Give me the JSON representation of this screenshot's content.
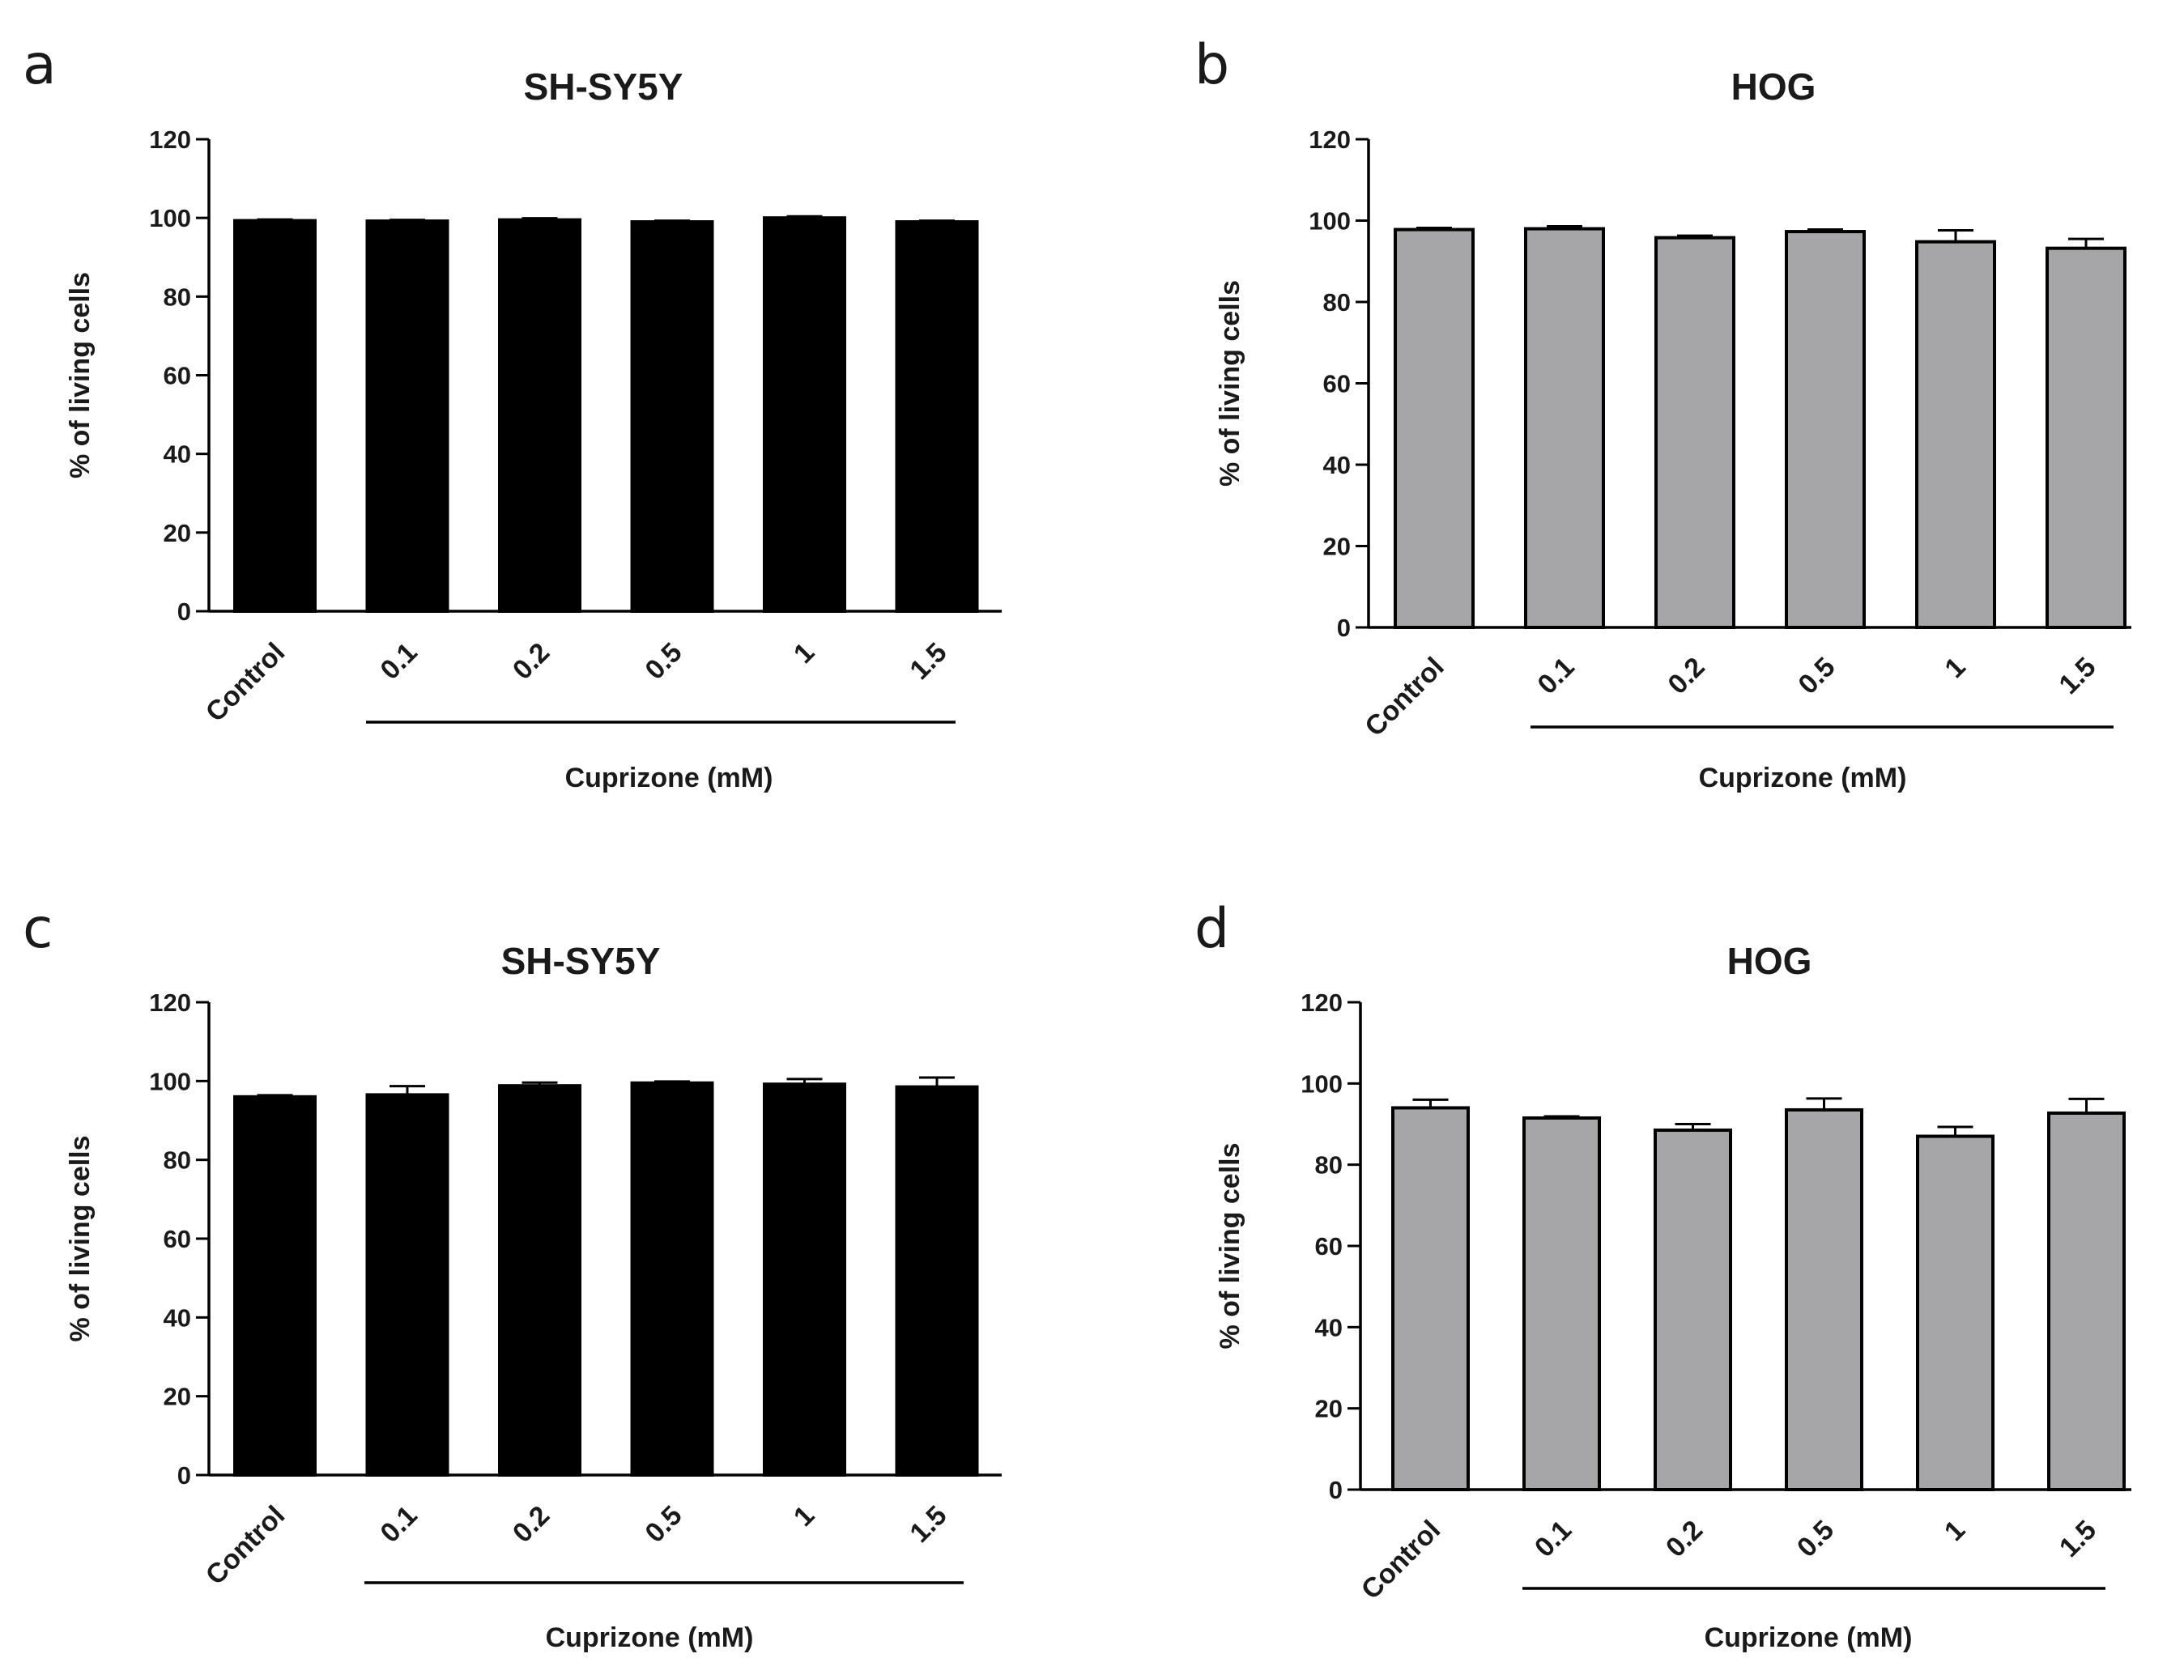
{
  "chart_data": [
    {
      "type": "bar",
      "panel": "a",
      "title": "SH-SY5Y",
      "ylabel": "% of living cells",
      "xlabel": "Cuprizone (mM)",
      "categories": [
        "Control",
        "0.1",
        "0.2",
        "0.5",
        "1",
        "1.5"
      ],
      "values": [
        99.3,
        99.2,
        99.5,
        99.0,
        100.0,
        99.0
      ],
      "errors": [
        0.3,
        0.3,
        0.4,
        0.3,
        0.4,
        0.3
      ],
      "ylim": [
        0,
        120
      ],
      "yticks": [
        0,
        20,
        40,
        60,
        80,
        100,
        120
      ],
      "bar_color": "#000000",
      "error_bar_color": "#000000",
      "grid": false
    },
    {
      "type": "bar",
      "panel": "b",
      "title": "HOG",
      "ylabel": "% of living cells",
      "xlabel": "Cuprizone (mM)",
      "categories": [
        "Control",
        "0.1",
        "0.2",
        "0.5",
        "1",
        "1.5"
      ],
      "values": [
        97.8,
        98.0,
        95.8,
        97.3,
        94.8,
        93.2
      ],
      "errors": [
        0.4,
        0.6,
        0.5,
        0.5,
        2.8,
        2.3
      ],
      "ylim": [
        0,
        120
      ],
      "yticks": [
        0,
        20,
        40,
        60,
        80,
        100,
        120
      ],
      "bar_color": "#a6a6a8",
      "error_bar_color": "#000000",
      "grid": false
    },
    {
      "type": "bar",
      "panel": "c",
      "title": "SH-SY5Y",
      "ylabel": "% of living cells",
      "xlabel": "Cuprizone (mM)",
      "categories": [
        "Control",
        "0.1",
        "0.2",
        "0.5",
        "1",
        "1.5"
      ],
      "values": [
        96.0,
        96.5,
        98.8,
        99.5,
        99.2,
        98.5
      ],
      "errors": [
        0.4,
        2.2,
        0.8,
        0.4,
        1.3,
        2.4
      ],
      "ylim": [
        0,
        120
      ],
      "yticks": [
        0,
        20,
        40,
        60,
        80,
        100,
        120
      ],
      "bar_color": "#000000",
      "error_bar_color": "#000000",
      "grid": false
    },
    {
      "type": "bar",
      "panel": "d",
      "title": "HOG",
      "ylabel": "% of living cells",
      "xlabel": "Cuprizone (mM)",
      "categories": [
        "Control",
        "0.1",
        "0.2",
        "0.5",
        "1",
        "1.5"
      ],
      "values": [
        94.0,
        91.5,
        88.5,
        93.5,
        87.0,
        92.7
      ],
      "errors": [
        2.0,
        0.4,
        1.5,
        2.8,
        2.3,
        3.5
      ],
      "ylim": [
        0,
        120
      ],
      "yticks": [
        0,
        20,
        40,
        60,
        80,
        100,
        120
      ],
      "bar_color": "#a6a6a8",
      "error_bar_color": "#000000",
      "grid": false
    }
  ]
}
